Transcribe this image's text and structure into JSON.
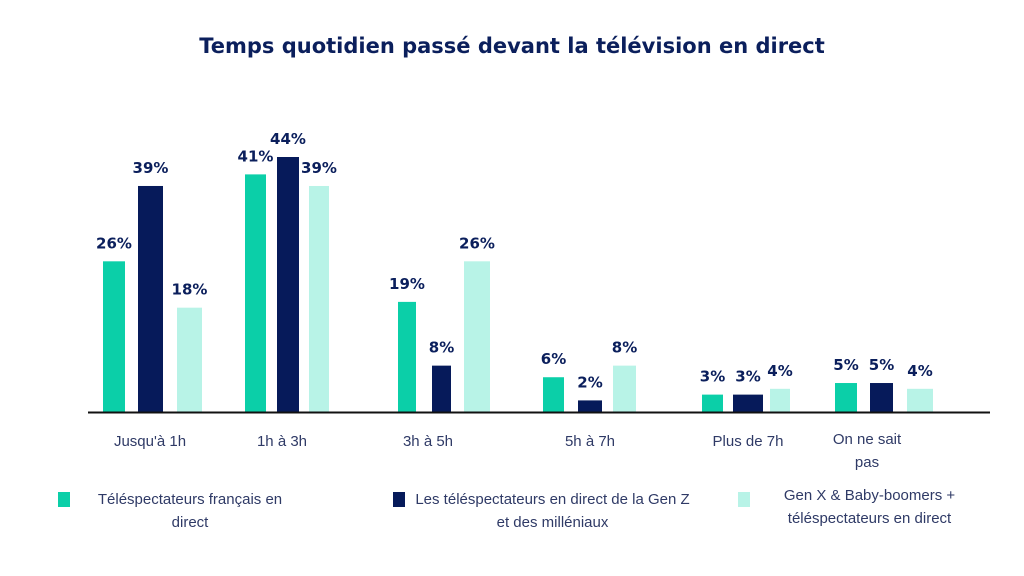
{
  "chart_data": {
    "type": "bar",
    "title": "Temps quotidien passé devant la télévision en direct",
    "categories": [
      "Jusqu'à 1h",
      "1h à 3h",
      "3h à 5h",
      "5h à 7h",
      "Plus de 7h",
      "On ne sait pas"
    ],
    "series": [
      {
        "name": "Téléspectateurs français en direct",
        "color": "#0bcfa8",
        "values": [
          26,
          41,
          19,
          6,
          3,
          5
        ]
      },
      {
        "name": "Les téléspectateurs en direct de la Gen Z et des milléniaux",
        "color": "#061a5a",
        "values": [
          39,
          44,
          8,
          2,
          3,
          5
        ]
      },
      {
        "name": "Gen X & Baby-boomers + téléspectateurs en direct",
        "color": "#b8f3e7",
        "values": [
          18,
          39,
          26,
          8,
          4,
          4
        ]
      }
    ],
    "value_suffix": "%",
    "ylim": [
      0,
      44
    ],
    "grid": false,
    "legend_placement": "bottom",
    "label_color": "#0b1f5c"
  }
}
